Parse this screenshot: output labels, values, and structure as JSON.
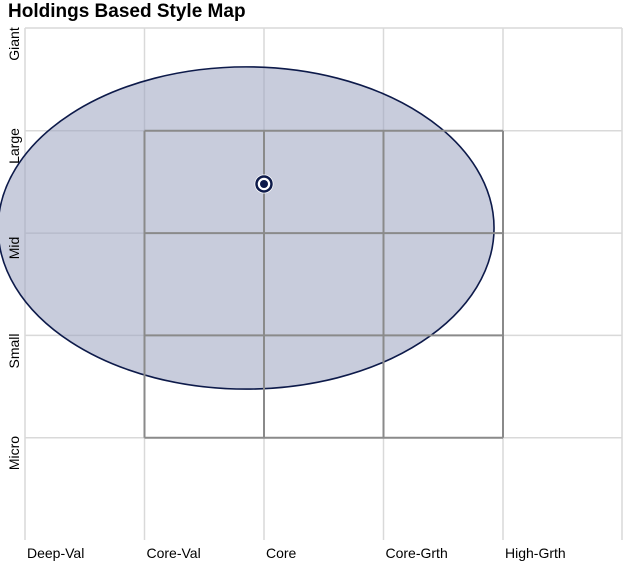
{
  "chart_data": {
    "type": "scatter",
    "title": "Holdings Based Style Map",
    "x_categories": [
      "Deep-Val",
      "Core-Val",
      "Core",
      "Core-Grth",
      "High-Grth"
    ],
    "y_categories": [
      "Micro",
      "Small",
      "Mid",
      "Large",
      "Giant"
    ],
    "centroid": {
      "x": 2.0,
      "y": 3.48
    },
    "ownership_zone": {
      "center_x": 1.85,
      "center_y": 3.05,
      "width": 4.15,
      "height": 3.15
    },
    "style_box": {
      "x_range": [
        1,
        4
      ],
      "y_range": [
        1,
        4
      ]
    },
    "grid": true,
    "colors": {
      "zone_fill": "#9aa3bf",
      "zone_stroke": "#0d1a4a",
      "marker": "#0d1a4a",
      "box_stroke": "#8a8a8a",
      "grid": "#d9d9d9"
    }
  }
}
